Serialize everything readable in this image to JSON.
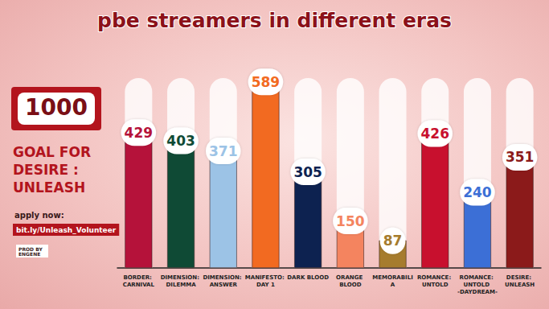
{
  "chart_data": {
    "type": "bar",
    "title": "pbe streamers in different eras",
    "categories": [
      "BORDER: CARNIVAL",
      "DIMENSION: DILEMMA",
      "DIMENSION: ANSWER",
      "MANIFESTO: DAY 1",
      "DARK BLOOD",
      "ORANGE BLOOD",
      "MEMORABILIA",
      "ROMANCE: UNTOLD",
      "ROMANCE: UNTOLD -DAYDREAM-",
      "DESIRE: UNLEASH"
    ],
    "values": [
      429,
      403,
      371,
      589,
      305,
      150,
      87,
      426,
      240,
      351
    ],
    "colors": [
      "#b5123a",
      "#0f4a35",
      "#9cc3e6",
      "#f26a21",
      "#0d2250",
      "#f4845f",
      "#a67c2e",
      "#c8102e",
      "#3c6fd6",
      "#8b1a1a"
    ],
    "ylim": [
      0,
      600
    ],
    "grid": false,
    "data_labels": true,
    "tick_labels": "x",
    "annotations": [
      "1000",
      "GOAL FOR DESIRE : UNLEASH",
      "apply now:",
      "bit.ly/Unleash_Volunteer",
      "PROD BY ENGENE"
    ]
  }
}
